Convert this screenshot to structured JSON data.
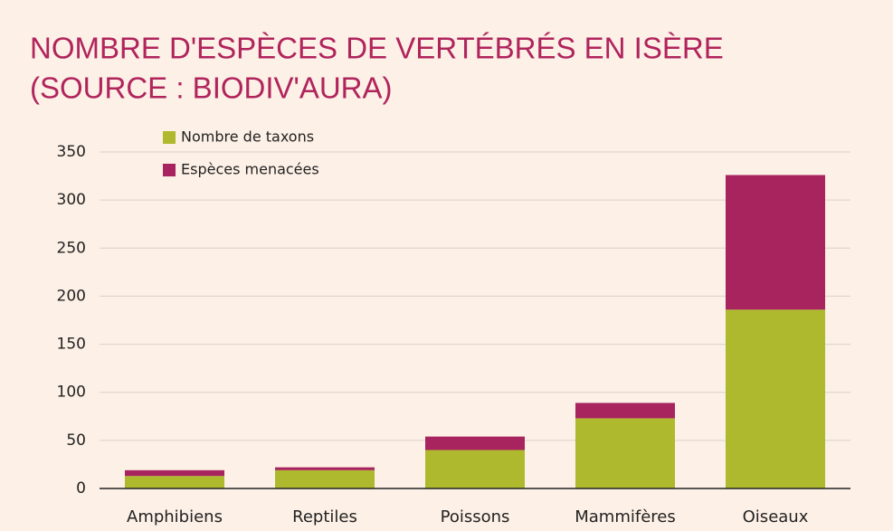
{
  "chart_data": {
    "type": "stacked-bar",
    "title": [
      "NOMBRE D'ESPÈCES DE VERTÉBRÉS EN ISÈRE",
      "(SOURCE : BIODIV'AURA)"
    ],
    "categories": [
      "Amphibiens",
      "Reptiles",
      "Poissons",
      "Mammifères",
      "Oiseaux"
    ],
    "series": [
      {
        "name": "Nombre de taxons",
        "color": "#afb92e",
        "values": [
          13,
          19,
          40,
          73,
          186
        ]
      },
      {
        "name": "Espèces menacées",
        "color": "#a8245f",
        "values": [
          6,
          3,
          14,
          16,
          140
        ]
      }
    ],
    "ylim": [
      0,
      350
    ],
    "yticks": [
      0,
      50,
      100,
      150,
      200,
      250,
      300,
      350
    ],
    "grid": true
  }
}
